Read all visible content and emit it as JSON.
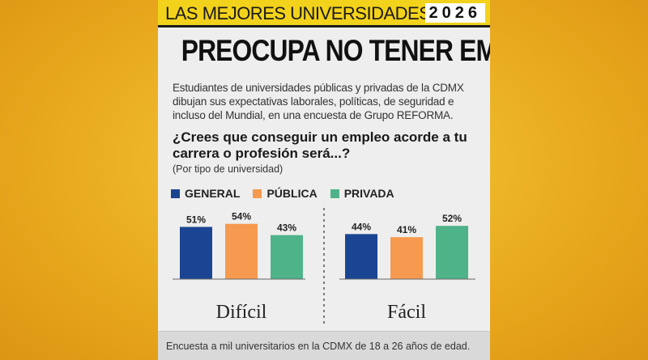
{
  "header": {
    "section": "LAS MEJORES UNIVERSIDADES",
    "year": "2026"
  },
  "headline": "PREOCUPA NO TENER EMPLEO",
  "intro": "Estudiantes de universidades públicas y privadas de la CDMX dibujan sus expectativas laborales, políticas, de seguridad e incluso del Mundial, en una encuesta de Grupo REFORMA.",
  "question": "¿Crees que conseguir un empleo acorde a tu carrera o profesión será...?",
  "note": "(Por tipo de universidad)",
  "footer": "Encuesta a mil universitarios en la CDMX de 18 a 26 años de edad.",
  "chart_data": {
    "type": "bar",
    "categories": [
      "Difícil",
      "Fácil"
    ],
    "unit": "%",
    "series": [
      {
        "name": "GENERAL",
        "color": "#1b4592",
        "values": [
          51,
          44
        ]
      },
      {
        "name": "PÚBLICA",
        "color": "#f59a4f",
        "values": [
          54,
          41
        ]
      },
      {
        "name": "PRIVADA",
        "color": "#4fb389",
        "values": [
          43,
          52
        ]
      }
    ],
    "ylim": [
      0,
      60
    ],
    "grid": false,
    "legend_position": "top-left"
  }
}
